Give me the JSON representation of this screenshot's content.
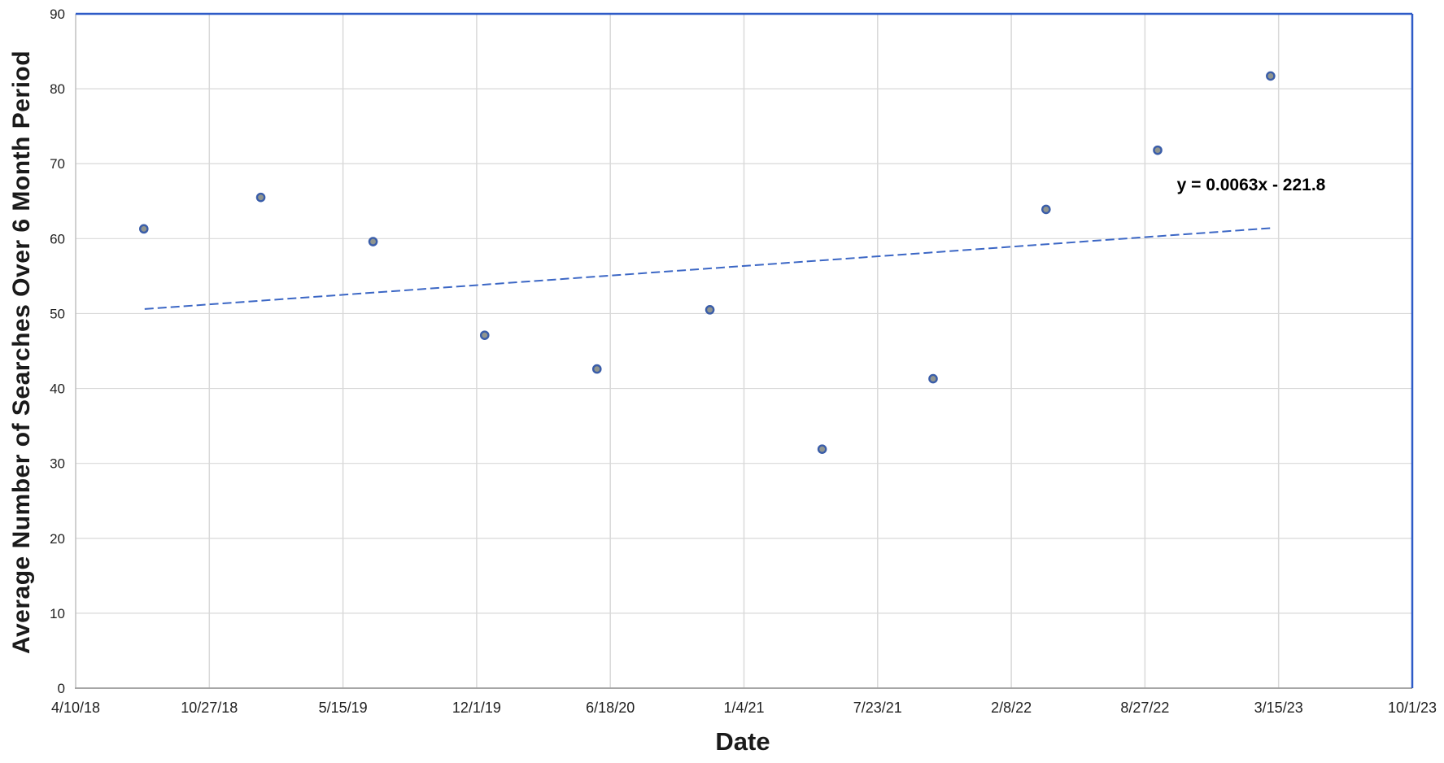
{
  "chart_data": {
    "type": "scatter",
    "title": "",
    "xlabel": "Date",
    "ylabel": "Average Number of Searches Over 6 Month Period",
    "x_tick_labels": [
      "4/10/18",
      "10/27/18",
      "5/15/19",
      "12/1/19",
      "6/18/20",
      "1/4/21",
      "7/23/21",
      "2/8/22",
      "8/27/22",
      "3/15/23",
      "10/1/23"
    ],
    "x_axis": {
      "start_date": "4/10/18",
      "end_date": "10/1/23",
      "tick_interval_days": 200,
      "total_days": 2000
    },
    "ylim": [
      0,
      90
    ],
    "y_tick_step": 10,
    "grid": true,
    "legend": "none",
    "points": [
      {
        "x_days": 102,
        "x_date_approx": "7/21/18",
        "y": 61.3
      },
      {
        "x_days": 277,
        "x_date_approx": "1/12/19",
        "y": 65.5
      },
      {
        "x_days": 445,
        "x_date_approx": "6/29/19",
        "y": 59.6
      },
      {
        "x_days": 612,
        "x_date_approx": "12/13/19",
        "y": 47.1
      },
      {
        "x_days": 780,
        "x_date_approx": "5/30/20",
        "y": 42.6
      },
      {
        "x_days": 949,
        "x_date_approx": "11/15/20",
        "y": 50.5
      },
      {
        "x_days": 1117,
        "x_date_approx": "5/2/21",
        "y": 31.9
      },
      {
        "x_days": 1283,
        "x_date_approx": "10/15/21",
        "y": 41.3
      },
      {
        "x_days": 1452,
        "x_date_approx": "4/1/22",
        "y": 63.9
      },
      {
        "x_days": 1619,
        "x_date_approx": "9/15/22",
        "y": 71.8
      },
      {
        "x_days": 1788,
        "x_date_approx": "3/3/23",
        "y": 81.7
      }
    ],
    "trendline": {
      "equation": "y = 0.0063x - 221.8",
      "style": "dashed",
      "x_days_start": 102,
      "x_days_end": 1788,
      "y_start": 50.6,
      "y_end": 61.4
    },
    "colors": {
      "plot_border_blue": "#2e5bc7",
      "trendline_blue": "#3c67c5",
      "marker_stroke": "#3a5da9",
      "marker_fill": "#90958f",
      "gridline": "#d9d9d9",
      "axis_line_left": "#c0c0c0",
      "axis_line_bottom": "#a6a6a6",
      "tick_text": "#1f1f1f",
      "background": "#ffffff"
    }
  }
}
